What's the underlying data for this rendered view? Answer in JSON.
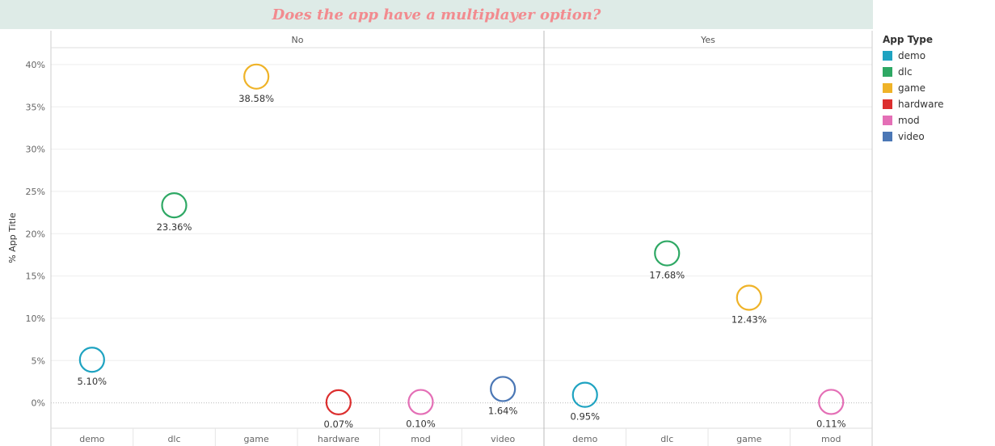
{
  "title": "Does the app have a multiplayer option?",
  "colors": {
    "demo": "#1fa3c1",
    "dlc": "#2ea864",
    "game": "#efb328",
    "hardware": "#dc2f2f",
    "mod": "#e46fb6",
    "video": "#4b77b5"
  },
  "legend": {
    "title": "App Type",
    "items": [
      {
        "label": "demo",
        "key": "demo"
      },
      {
        "label": "dlc",
        "key": "dlc"
      },
      {
        "label": "game",
        "key": "game"
      },
      {
        "label": "hardware",
        "key": "hardware"
      },
      {
        "label": "mod",
        "key": "mod"
      },
      {
        "label": "video",
        "key": "video"
      }
    ]
  },
  "chart_data": {
    "type": "scatter",
    "ylabel": "% App Title",
    "ylim": [
      -3,
      42
    ],
    "yticks": [
      0,
      5,
      10,
      15,
      20,
      25,
      30,
      35,
      40
    ],
    "ytick_labels": [
      "0%",
      "5%",
      "10%",
      "15%",
      "20%",
      "25%",
      "30%",
      "35%",
      "40%"
    ],
    "grid": true,
    "legend_position": "right",
    "panels": [
      {
        "name": "No",
        "categories": [
          "demo",
          "dlc",
          "game",
          "hardware",
          "mod",
          "video"
        ],
        "values": [
          5.1,
          23.36,
          38.58,
          0.07,
          0.1,
          1.64
        ],
        "labels": [
          "5.10%",
          "23.36%",
          "38.58%",
          "0.07%",
          "0.10%",
          "1.64%"
        ]
      },
      {
        "name": "Yes",
        "categories": [
          "demo",
          "dlc",
          "game",
          "mod"
        ],
        "values": [
          0.95,
          17.68,
          12.43,
          0.11
        ],
        "labels": [
          "0.95%",
          "17.68%",
          "12.43%",
          "0.11%"
        ]
      }
    ]
  }
}
